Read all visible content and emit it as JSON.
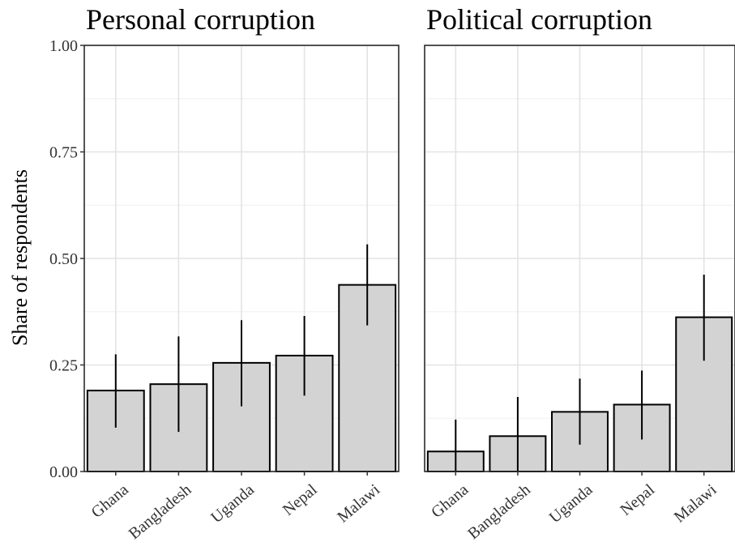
{
  "chart_data": {
    "type": "bar",
    "ylabel": "Share of respondents",
    "ylim": [
      0,
      1
    ],
    "yticks": [
      "0.00",
      "0.25",
      "0.50",
      "0.75",
      "1.00"
    ],
    "ytick_values": [
      0,
      0.25,
      0.5,
      0.75,
      1.0
    ],
    "grid": true,
    "bar_color": "#d3d3d3",
    "panels": [
      {
        "title": "Personal corruption",
        "categories": [
          "Ghana",
          "Bangladesh",
          "Uganda",
          "Nepal",
          "Malawi"
        ],
        "values": [
          0.19,
          0.205,
          0.255,
          0.272,
          0.438
        ],
        "error_low": [
          0.103,
          0.093,
          0.153,
          0.178,
          0.343
        ],
        "error_high": [
          0.275,
          0.317,
          0.355,
          0.365,
          0.533
        ]
      },
      {
        "title": "Political corruption",
        "categories": [
          "Ghana",
          "Bangladesh",
          "Uganda",
          "Nepal",
          "Malawi"
        ],
        "values": [
          0.047,
          0.083,
          0.14,
          0.157,
          0.362
        ],
        "error_low": [
          0.0,
          0.0,
          0.063,
          0.075,
          0.26
        ],
        "error_high": [
          0.122,
          0.175,
          0.218,
          0.237,
          0.462
        ]
      }
    ]
  }
}
